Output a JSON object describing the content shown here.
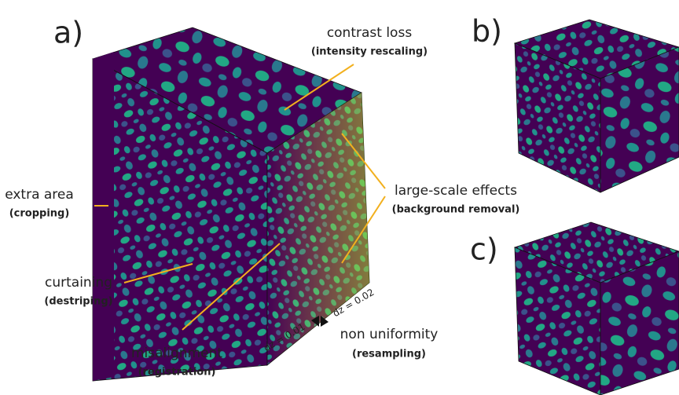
{
  "panels": {
    "a": "a)",
    "b": "b)",
    "c": "c)"
  },
  "annotations": [
    {
      "label": "contrast loss",
      "method": "(intensity rescaling)"
    },
    {
      "label": "large-scale effects",
      "method": "(background removal)"
    },
    {
      "label": "extra area",
      "method": "(cropping)"
    },
    {
      "label": "curtaining",
      "method": "(destriping)"
    },
    {
      "label": "misalignment",
      "method": "(registration)"
    },
    {
      "label": "non uniformity",
      "method": "(resampling)"
    }
  ],
  "spacing": {
    "left": "dz = 0.01",
    "right": "dz = 0.02"
  }
}
